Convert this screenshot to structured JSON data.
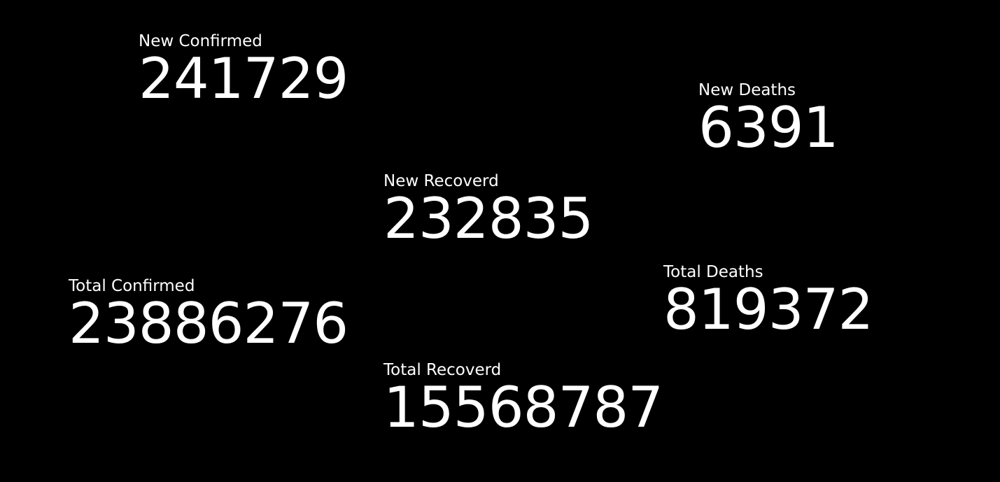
{
  "stats": {
    "new_confirmed": {
      "label": "New Confirmed",
      "value": "241729"
    },
    "new_deaths": {
      "label": "New Deaths",
      "value": "6391"
    },
    "new_recovered": {
      "label": "New Recoverd",
      "value": "232835"
    },
    "total_confirmed": {
      "label": "Total Confirmed",
      "value": "23886276"
    },
    "total_deaths": {
      "label": "Total Deaths",
      "value": "819372"
    },
    "total_recovered": {
      "label": "Total Recoverd",
      "value": "15568787"
    }
  },
  "colors": {
    "background": "#000000",
    "text": "#ffffff"
  }
}
